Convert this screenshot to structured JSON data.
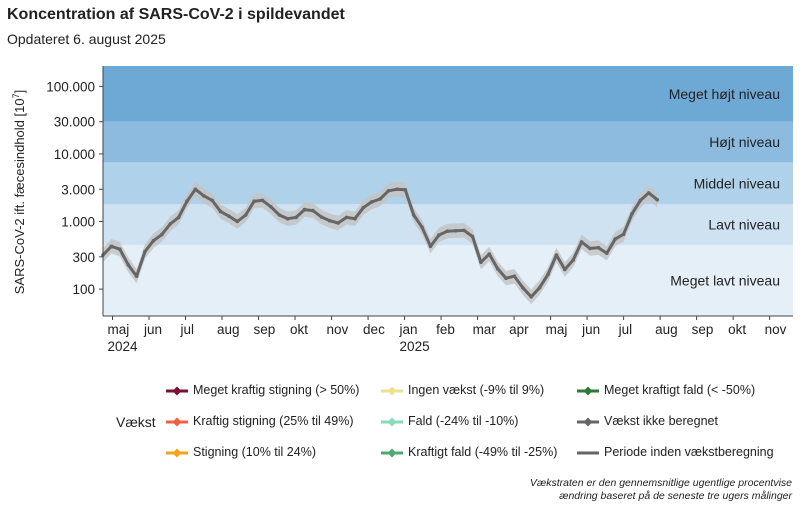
{
  "header": {
    "title": "Koncentration af SARS-CoV-2 i spildevandet",
    "subtitle": "Opdateret 6. august 2025"
  },
  "chart_data": {
    "type": "line",
    "title": "Koncentration af SARS-CoV-2 i spildevandet",
    "ylabel": "SARS-CoV-2 ift. fæcesindhold [10",
    "ylabel_exp": "7",
    "ylabel_close": "]",
    "y_scale": "log",
    "ylim": [
      40,
      200000
    ],
    "y_ticks": [
      {
        "value": 100,
        "label": "100"
      },
      {
        "value": 300,
        "label": "300"
      },
      {
        "value": 1000,
        "label": "1.000"
      },
      {
        "value": 3000,
        "label": "3.000"
      },
      {
        "value": 10000,
        "label": "10.000"
      },
      {
        "value": 30000,
        "label": "30.000"
      },
      {
        "value": 100000,
        "label": "100.000"
      }
    ],
    "xlim": [
      0,
      18.9
    ],
    "x_ticks": [
      {
        "value": 0.26,
        "label": "maj",
        "year": "2024"
      },
      {
        "value": 1.26,
        "label": "jun"
      },
      {
        "value": 2.26,
        "label": "jul"
      },
      {
        "value": 3.26,
        "label": "aug"
      },
      {
        "value": 4.26,
        "label": "sep"
      },
      {
        "value": 5.26,
        "label": "okt"
      },
      {
        "value": 6.26,
        "label": "nov"
      },
      {
        "value": 7.26,
        "label": "dec"
      },
      {
        "value": 8.26,
        "label": "jan",
        "year": "2025"
      },
      {
        "value": 9.26,
        "label": "feb"
      },
      {
        "value": 10.26,
        "label": "mar"
      },
      {
        "value": 11.26,
        "label": "apr"
      },
      {
        "value": 12.26,
        "label": "maj"
      },
      {
        "value": 13.26,
        "label": "jun"
      },
      {
        "value": 14.26,
        "label": "jul"
      },
      {
        "value": 15.26,
        "label": "aug"
      },
      {
        "value": 16.26,
        "label": "sep"
      },
      {
        "value": 17.26,
        "label": "okt"
      },
      {
        "value": 18.26,
        "label": "nov"
      }
    ],
    "bands": [
      {
        "label": "Meget lavt niveau",
        "from": 40,
        "to": 450,
        "color": "#e4eff8"
      },
      {
        "label": "Lavt niveau",
        "from": 450,
        "to": 1800,
        "color": "#cfe2f2"
      },
      {
        "label": "Middel niveau",
        "from": 1800,
        "to": 7500,
        "color": "#b0d1ea"
      },
      {
        "label": "Højt niveau",
        "from": 7500,
        "to": 30000,
        "color": "#8dbbdf"
      },
      {
        "label": "Meget højt niveau",
        "from": 30000,
        "to": 200000,
        "color": "#6ea8d4"
      }
    ],
    "series": [
      {
        "name": "Periode inden vækstberegning",
        "color": "#666666",
        "band_color": "#c4c4c4",
        "x": [
          0.0,
          0.23,
          0.46,
          0.69,
          0.92,
          1.15,
          1.38,
          1.61,
          1.84,
          2.07,
          2.3,
          2.53,
          2.76,
          2.99,
          3.22,
          3.45,
          3.68,
          3.91,
          4.14,
          4.37,
          4.6,
          4.83,
          5.06,
          5.29,
          5.52,
          5.75,
          5.98,
          6.21,
          6.44,
          6.67,
          6.9,
          7.13,
          7.36,
          7.59,
          7.82,
          8.05,
          8.28,
          8.51,
          8.74,
          8.97,
          9.2,
          9.43,
          9.66,
          9.89,
          10.12,
          10.35,
          10.58,
          10.81,
          11.04,
          11.27,
          11.5,
          11.73,
          11.96,
          12.19,
          12.42,
          12.65,
          12.88,
          13.11,
          13.34,
          13.57,
          13.8,
          14.03,
          14.26,
          14.49,
          14.72,
          14.95,
          15.18
        ],
        "values": [
          320,
          430,
          390,
          230,
          155,
          360,
          520,
          640,
          920,
          1150,
          2000,
          3000,
          2400,
          2050,
          1400,
          1200,
          1000,
          1250,
          2000,
          2050,
          1650,
          1250,
          1100,
          1150,
          1500,
          1450,
          1170,
          1030,
          950,
          1150,
          1100,
          1600,
          1950,
          2150,
          2850,
          3000,
          2950,
          1250,
          820,
          430,
          630,
          720,
          730,
          740,
          600,
          250,
          330,
          200,
          145,
          155,
          105,
          77,
          105,
          165,
          320,
          195,
          270,
          500,
          400,
          410,
          340,
          550,
          650,
          1300,
          2050,
          2650,
          2100
        ]
      }
    ],
    "legend": {
      "title": "Vækst",
      "items": [
        {
          "label": "Meget kraftig stigning (> 50%)",
          "color": "#7a1132",
          "marker": "diamond"
        },
        {
          "label": "Kraftig stigning (25% til 49%)",
          "color": "#f06040",
          "marker": "diamond"
        },
        {
          "label": "Stigning (10% til 24%)",
          "color": "#f5a31a",
          "marker": "diamond"
        },
        {
          "label": "Ingen vækst (-9% til 9%)",
          "color": "#ede18e",
          "marker": "diamond"
        },
        {
          "label": "Fald (-24% til -10%)",
          "color": "#88dbb4",
          "marker": "diamond"
        },
        {
          "label": "Kraftigt fald (-49% til -25%)",
          "color": "#4fa870",
          "marker": "diamond"
        },
        {
          "label": "Meget kraftigt fald (< -50%)",
          "color": "#2f7a35",
          "marker": "diamond"
        },
        {
          "label": "Vækst ikke beregnet",
          "color": "#666666",
          "marker": "diamond"
        },
        {
          "label": "Periode inden vækstberegning",
          "color": "#666666",
          "marker": "line"
        }
      ]
    }
  },
  "footnote": {
    "line1": "Vækstraten er den gennemsnitlige ugentlige procentvise",
    "line2": "ændring baseret på de seneste tre ugers målinger"
  }
}
